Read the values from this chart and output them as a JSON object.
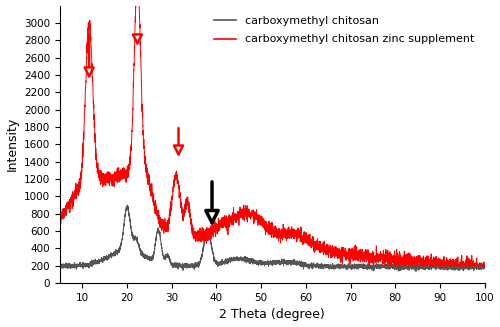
{
  "xlabel": "2 Theta (degree)",
  "ylabel": "Intensity",
  "xlim": [
    5,
    100
  ],
  "ylim": [
    0,
    3200
  ],
  "xticks": [
    10,
    20,
    30,
    40,
    50,
    60,
    70,
    80,
    90,
    100
  ],
  "yticks": [
    0,
    200,
    400,
    600,
    800,
    1000,
    1200,
    1400,
    1600,
    1800,
    2000,
    2200,
    2400,
    2600,
    2800,
    3000
  ],
  "legend_labels": [
    "carboxymethyl chitosan",
    "carboxymethyl chitosan zinc supplement"
  ],
  "legend_colors": [
    "#555555",
    "red"
  ],
  "bg_color": "white",
  "red_arrows": [
    [
      11.5,
      2900,
      2320
    ],
    [
      22.3,
      2850,
      2700
    ],
    [
      31.5,
      1820,
      1420
    ]
  ],
  "black_arrow": [
    39,
    1200,
    620
  ],
  "figsize": [
    5.0,
    3.27
  ],
  "dpi": 100
}
